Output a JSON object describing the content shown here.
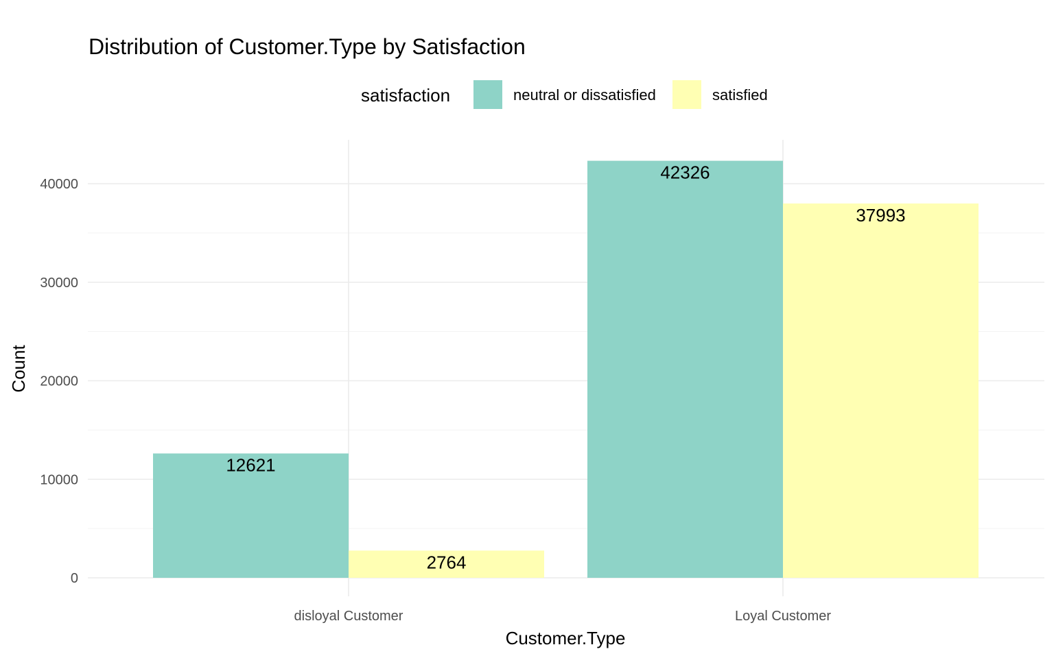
{
  "chart_data": {
    "type": "bar",
    "title": "Distribution of Customer.Type by Satisfaction",
    "xlabel": "Customer.Type",
    "ylabel": "Count",
    "categories": [
      "disloyal Customer",
      "Loyal Customer"
    ],
    "series": [
      {
        "name": "neutral or dissatisfied",
        "values": [
          12621,
          42326
        ],
        "color": "#8ed3c7"
      },
      {
        "name": "satisfied",
        "values": [
          2764,
          37993
        ],
        "color": "#ffffb3"
      }
    ],
    "ylim": [
      0,
      44500
    ],
    "yticks": [
      0,
      10000,
      20000,
      30000,
      40000
    ],
    "grid": true,
    "legend": {
      "title": "satisfaction",
      "position": "top"
    },
    "data_labels": true
  }
}
